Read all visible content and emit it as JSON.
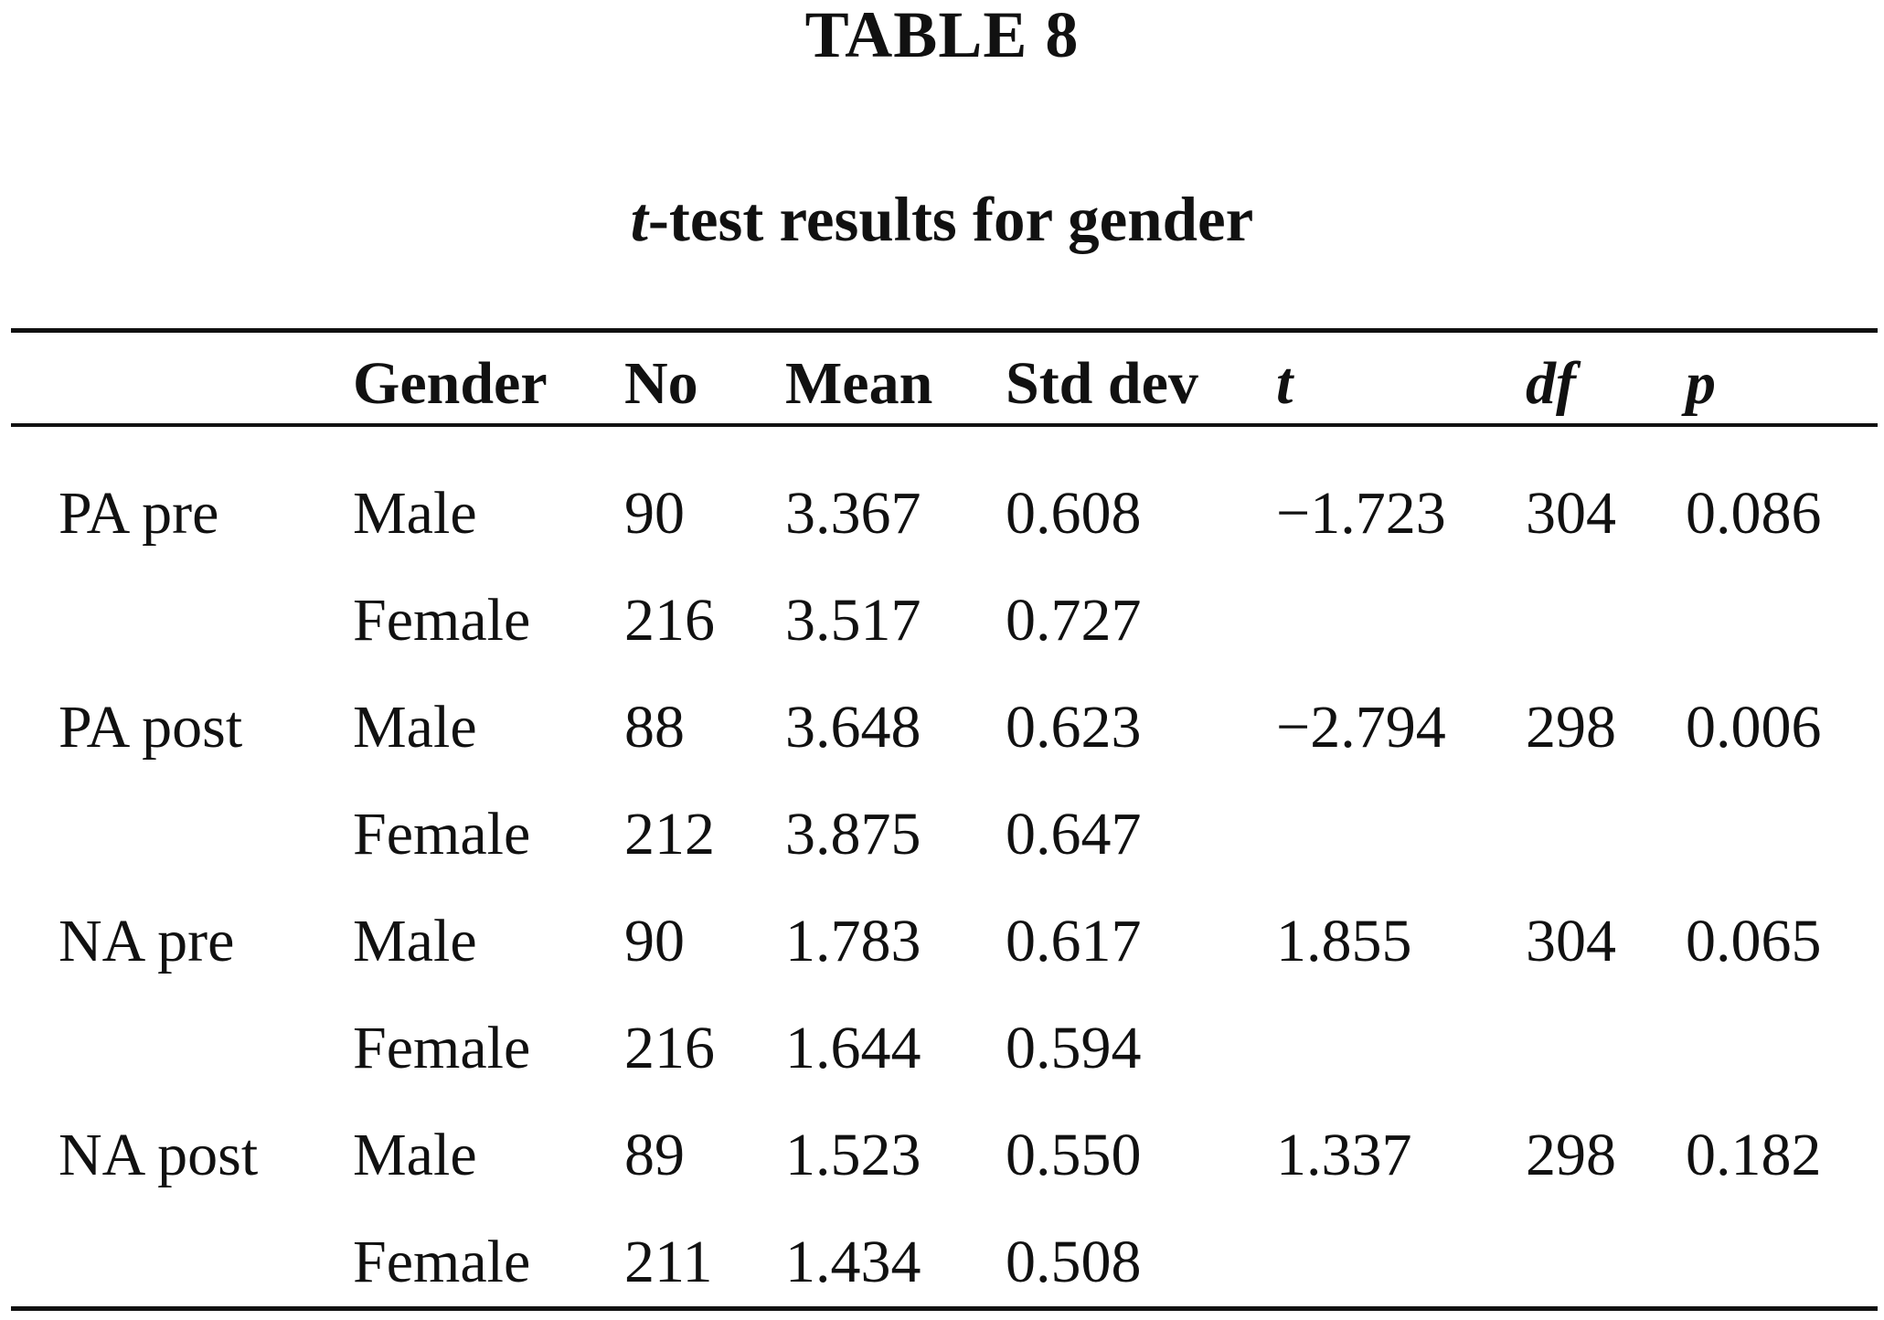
{
  "table_label": "TABLE 8",
  "caption": {
    "italic_part": "t",
    "rest": "-test results for gender"
  },
  "headers": {
    "variable": "",
    "gender": "Gender",
    "no": "No",
    "mean": "Mean",
    "std_dev": "Std dev",
    "t": "t",
    "df": "df",
    "p": "p"
  },
  "rows": [
    {
      "variable": "PA pre",
      "gender": "Male",
      "no": "90",
      "mean": "3.367",
      "std_dev": "0.608",
      "t": "−1.723",
      "df": "304",
      "p": "0.086"
    },
    {
      "variable": "",
      "gender": "Female",
      "no": "216",
      "mean": "3.517",
      "std_dev": "0.727",
      "t": "",
      "df": "",
      "p": ""
    },
    {
      "variable": "PA post",
      "gender": "Male",
      "no": "88",
      "mean": "3.648",
      "std_dev": "0.623",
      "t": "−2.794",
      "df": "298",
      "p": "0.006"
    },
    {
      "variable": "",
      "gender": "Female",
      "no": "212",
      "mean": "3.875",
      "std_dev": "0.647",
      "t": "",
      "df": "",
      "p": ""
    },
    {
      "variable": "NA pre",
      "gender": "Male",
      "no": "90",
      "mean": "1.783",
      "std_dev": "0.617",
      "t": "1.855",
      "df": "304",
      "p": "0.065"
    },
    {
      "variable": "",
      "gender": "Female",
      "no": "216",
      "mean": "1.644",
      "std_dev": "0.594",
      "t": "",
      "df": "",
      "p": ""
    },
    {
      "variable": "NA post",
      "gender": "Male",
      "no": "89",
      "mean": "1.523",
      "std_dev": "0.550",
      "t": "1.337",
      "df": "298",
      "p": "0.182"
    },
    {
      "variable": "",
      "gender": "Female",
      "no": "211",
      "mean": "1.434",
      "std_dev": "0.508",
      "t": "",
      "df": "",
      "p": ""
    }
  ]
}
